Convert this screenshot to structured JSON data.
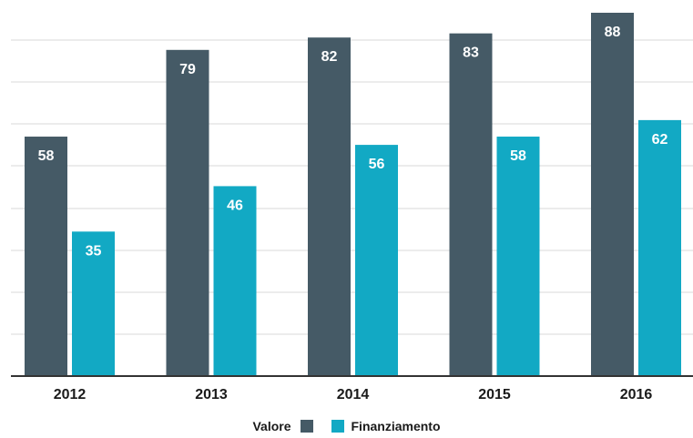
{
  "chart_data": {
    "type": "bar",
    "categories": [
      "2012",
      "2013",
      "2014",
      "2015",
      "2016"
    ],
    "series": [
      {
        "name": "Valore",
        "values": [
          58,
          79,
          82,
          83,
          88
        ],
        "color": "#455a66"
      },
      {
        "name": "Finanziamento",
        "values": [
          35,
          46,
          56,
          58,
          62
        ],
        "color": "#12a9c4"
      }
    ],
    "ylim": [
      0,
      88
    ],
    "grid": true,
    "legend": "bottom-center"
  }
}
